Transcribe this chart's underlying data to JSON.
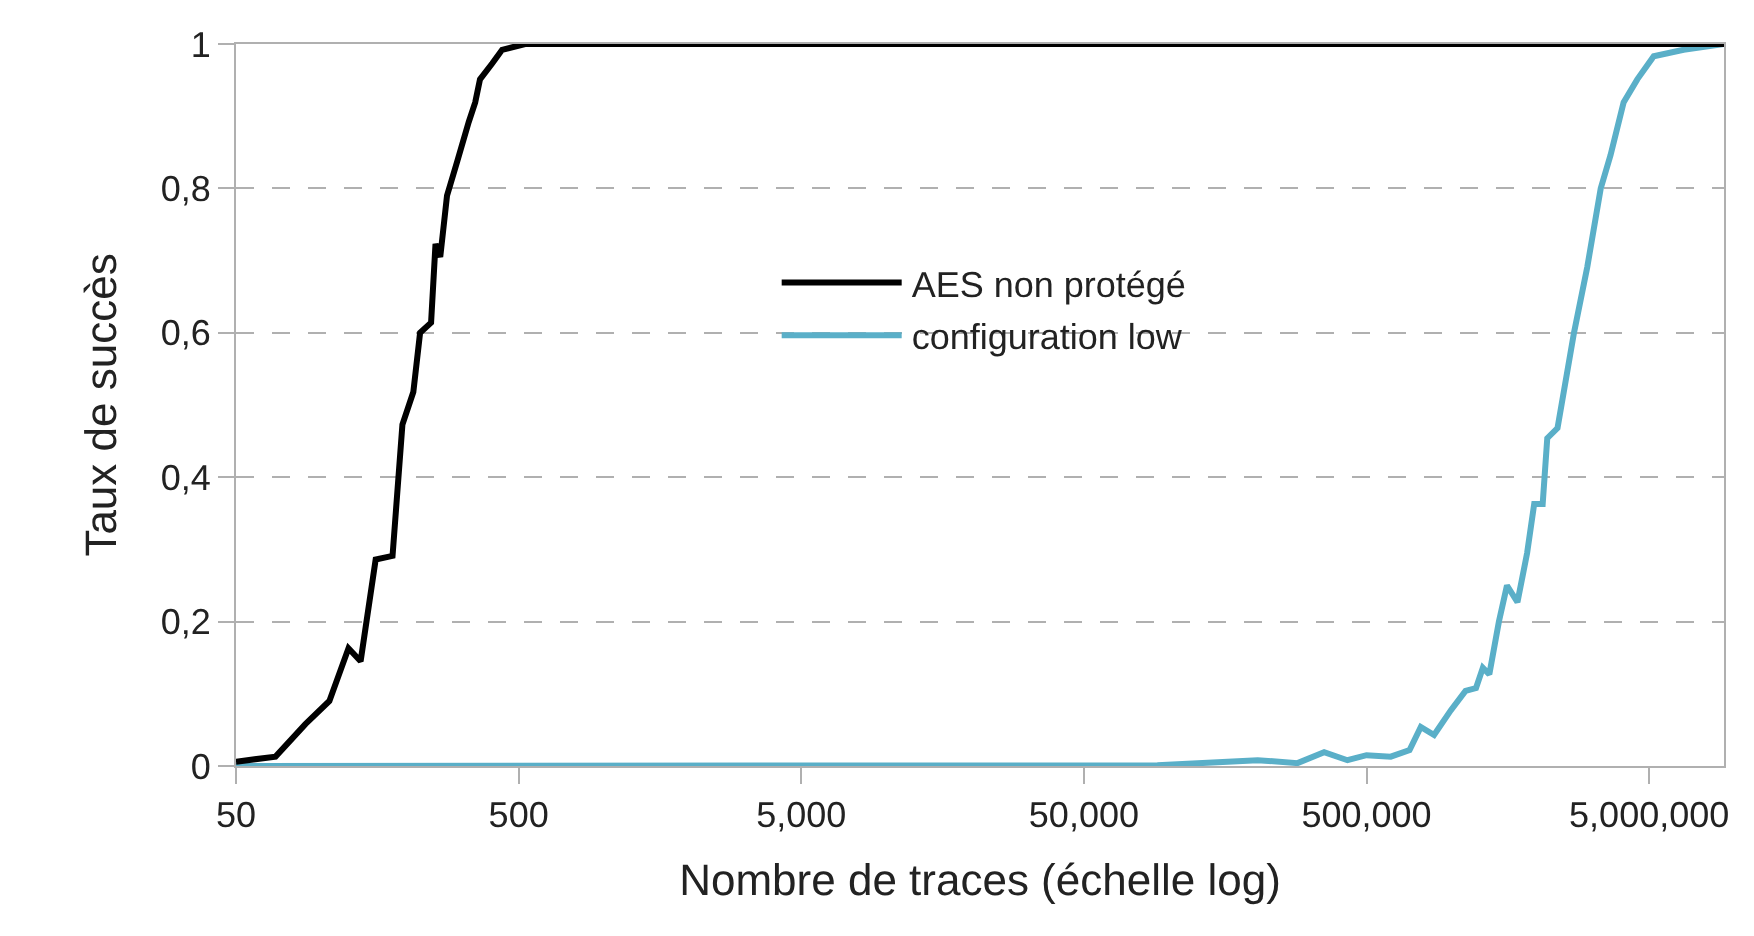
{
  "chart_data": {
    "type": "line",
    "xlabel": "Nombre de traces (échelle log)",
    "ylabel": "Taux de succès",
    "log": "x",
    "xlim": [
      50,
      9200000
    ],
    "xticks": [
      50,
      500,
      {
        "value": 5000,
        "label": "5,000"
      },
      {
        "value": 50000,
        "label": "50,000"
      },
      {
        "value": 500000,
        "label": "500,000"
      },
      {
        "value": 5000000,
        "label": "5,000,000"
      }
    ],
    "ylim": [
      0,
      1
    ],
    "yticks": [
      0,
      {
        "value": 0.2,
        "label": "0,2"
      },
      {
        "value": 0.4,
        "label": "0,4"
      },
      {
        "value": 0.6,
        "label": "0,6"
      },
      {
        "value": 0.8,
        "label": "0,8"
      },
      1
    ],
    "grid": "y",
    "legend": "center",
    "line_style": "solid",
    "marker": "none",
    "series": [
      {
        "name": "AES non protégé",
        "color": "#000000",
        "x": [
          50,
          69,
          88,
          107,
          125,
          138,
          156,
          179,
          194,
          212,
          224,
          245,
          254,
          264,
          279,
          303,
          333,
          351,
          365,
          403,
          437,
          527,
          9200000
        ],
        "values": [
          0.006,
          0.013,
          0.058,
          0.09,
          0.163,
          0.145,
          0.286,
          0.291,
          0.473,
          0.518,
          0.6,
          0.614,
          0.723,
          0.705,
          0.79,
          0.837,
          0.892,
          0.919,
          0.951,
          0.973,
          0.992,
          1.0,
          1.0
        ]
      },
      {
        "name": "configuration low",
        "color": "#5aafc8",
        "x": [
          50,
          91000,
          206000,
          285000,
          354000,
          428000,
          500000,
          609000,
          710000,
          778000,
          867000,
          993000,
          1120000,
          1220000,
          1290000,
          1360000,
          1470000,
          1570000,
          1710000,
          1850000,
          1960000,
          2100000,
          2180000,
          2370000,
          2710000,
          3020000,
          3370000,
          3650000,
          4060000,
          4540000,
          5190000,
          6620000,
          9200000
        ],
        "values": [
          0.0,
          0.001,
          0.008,
          0.004,
          0.019,
          0.008,
          0.015,
          0.013,
          0.022,
          0.054,
          0.043,
          0.077,
          0.104,
          0.108,
          0.136,
          0.127,
          0.2,
          0.25,
          0.227,
          0.295,
          0.363,
          0.363,
          0.454,
          0.468,
          0.6,
          0.691,
          0.8,
          0.846,
          0.919,
          0.951,
          0.983,
          0.992,
          1.0
        ]
      }
    ]
  }
}
